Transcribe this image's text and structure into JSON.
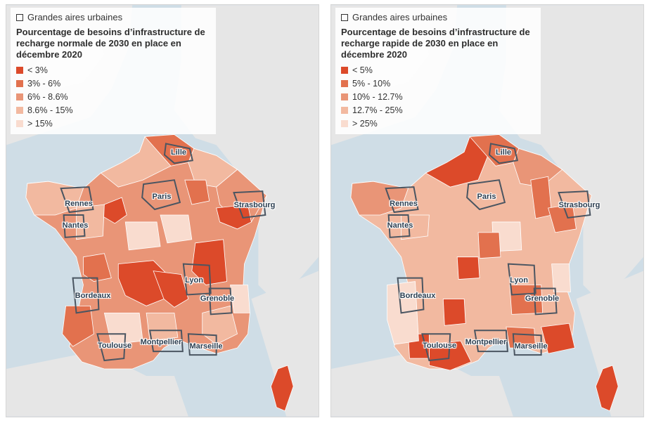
{
  "colors": {
    "sea": "#cfdde6",
    "land_other": "#e6e6e6",
    "c1": "#dc4a2a",
    "c2": "#e2714e",
    "c3": "#e99577",
    "c4": "#f2b9a0",
    "c5": "#f9dccf",
    "urban_border": "#4a5561"
  },
  "maps": [
    {
      "toggle_label": "Grandes aires urbaines",
      "title": "Pourcentage de besoins d’infrastructure de recharge normale de 2030 en place en décembre 2020",
      "legend": [
        {
          "label": "< 3%",
          "color": "#dc4a2a"
        },
        {
          "label": "3% - 6%",
          "color": "#e2714e"
        },
        {
          "label": "6% - 8.6%",
          "color": "#e99577"
        },
        {
          "label": "8.6% - 15%",
          "color": "#f2b9a0"
        },
        {
          "label": "> 15%",
          "color": "#f9dccf"
        }
      ],
      "cities": [
        "Lille",
        "Paris",
        "Rennes",
        "Strasbourg",
        "Nantes",
        "Lyon",
        "Bordeaux",
        "Grenoble",
        "Toulouse",
        "Montpellier",
        "Marseille"
      ]
    },
    {
      "toggle_label": "Grandes aires urbaines",
      "title": "Pourcentage de besoins d’infrastructure de recharge rapide de 2030 en place en décembre 2020",
      "legend": [
        {
          "label": "< 5%",
          "color": "#dc4a2a"
        },
        {
          "label": "5% - 10%",
          "color": "#e2714e"
        },
        {
          "label": "10% - 12.7%",
          "color": "#e99577"
        },
        {
          "label": "12.7% - 25%",
          "color": "#f2b9a0"
        },
        {
          "label": "> 25%",
          "color": "#f9dccf"
        }
      ],
      "cities": [
        "Lille",
        "Paris",
        "Rennes",
        "Strasbourg",
        "Nantes",
        "Lyon",
        "Bordeaux",
        "Grenoble",
        "Toulouse",
        "Montpellier",
        "Marseille"
      ]
    }
  ]
}
